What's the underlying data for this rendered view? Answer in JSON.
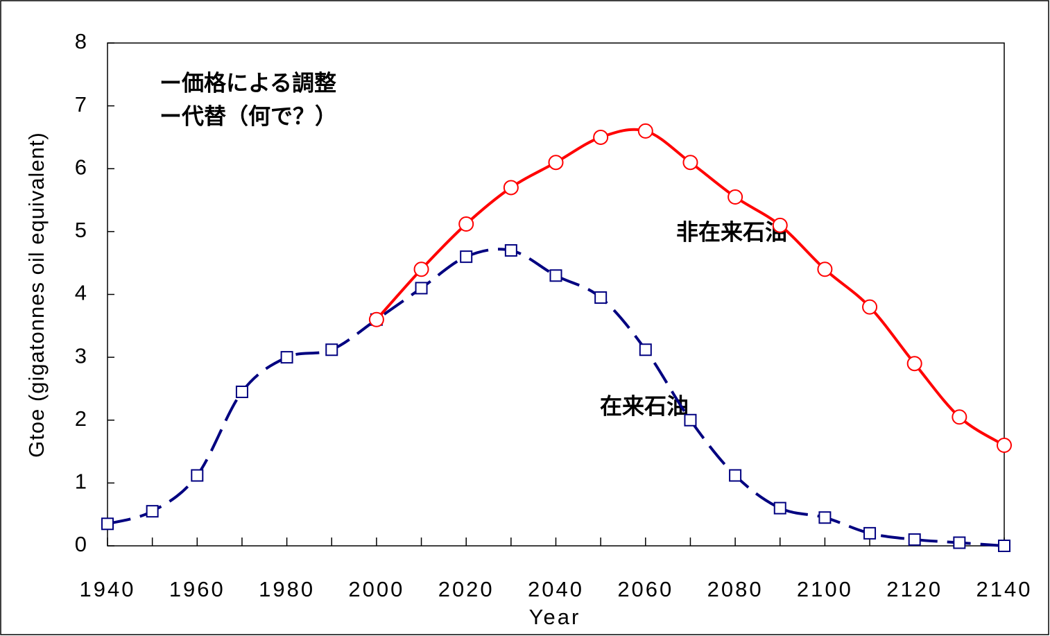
{
  "chart_data": {
    "type": "line",
    "x": [
      1940,
      1950,
      1960,
      1970,
      1980,
      1990,
      2000,
      2010,
      2020,
      2030,
      2040,
      2050,
      2060,
      2070,
      2080,
      2090,
      2100,
      2110,
      2120,
      2130,
      2140
    ],
    "series": [
      {
        "name": "在来石油",
        "color": "#000080",
        "label_color": "#00b890",
        "marker": "square",
        "dashed": true,
        "values": [
          0.35,
          0.55,
          1.12,
          2.45,
          3.0,
          3.12,
          3.6,
          4.1,
          4.6,
          4.7,
          4.3,
          3.95,
          3.12,
          2.0,
          1.12,
          0.6,
          0.45,
          0.2,
          0.1,
          0.05,
          0.0
        ]
      },
      {
        "name": "非在来石油",
        "color": "#ff0000",
        "label_color": "#ff0000",
        "marker": "circle",
        "dashed": false,
        "values": [
          null,
          null,
          null,
          null,
          null,
          null,
          3.6,
          4.4,
          5.12,
          5.7,
          6.1,
          6.5,
          6.6,
          6.1,
          5.55,
          5.1,
          4.4,
          3.8,
          2.9,
          2.05,
          1.6
        ]
      }
    ],
    "annotations": [
      "ー価格による調整",
      "ー代替（何で？）"
    ],
    "xlabel": "Year",
    "ylabel": "Gtoe (gigatonnes oil equivalent)",
    "xlim": [
      1940,
      2140
    ],
    "xticks": [
      1940,
      1960,
      1980,
      2000,
      2020,
      2040,
      2060,
      2080,
      2100,
      2120,
      2140
    ],
    "ylim": [
      0,
      8
    ],
    "yticks": [
      0,
      1,
      2,
      3,
      4,
      5,
      6,
      7,
      8
    ]
  }
}
